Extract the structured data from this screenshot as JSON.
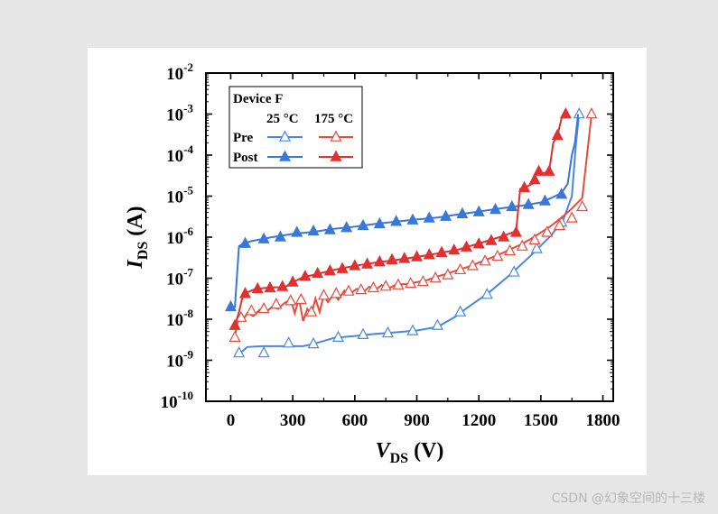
{
  "chart_data": {
    "type": "line",
    "title": "",
    "xlabel": {
      "main": "V",
      "sub": "DS",
      "unit": " (V)"
    },
    "ylabel": {
      "main": "I",
      "sub": "DS",
      "unit": " (A)"
    },
    "xlim": [
      -120,
      1850
    ],
    "ylim_log10": [
      -10,
      -2
    ],
    "y_scale": "log",
    "x_ticks": [
      0,
      300,
      600,
      900,
      1200,
      1500,
      1800
    ],
    "x_tick_labels": [
      "0",
      "300",
      "600",
      "900",
      "1200",
      "1500",
      "1800"
    ],
    "y_ticks_exponents": [
      -10,
      -9,
      -8,
      -7,
      -6,
      -5,
      -4,
      -3,
      -2
    ],
    "y_tick_labels": [
      {
        "base": "10",
        "exp": "-10"
      },
      {
        "base": "10",
        "exp": "-9"
      },
      {
        "base": "10",
        "exp": "-8"
      },
      {
        "base": "10",
        "exp": "-7"
      },
      {
        "base": "10",
        "exp": "-6"
      },
      {
        "base": "10",
        "exp": "-5"
      },
      {
        "base": "10",
        "exp": "-4"
      },
      {
        "base": "10",
        "exp": "-3"
      },
      {
        "base": "10",
        "exp": "-2"
      }
    ],
    "legend": {
      "title": "Device F",
      "col_headers": [
        "25 °C",
        "175 °C"
      ],
      "row_labels": [
        "Pre",
        "Post"
      ],
      "placement": "top-left"
    },
    "series": [
      {
        "name": "Pre 25 °C",
        "color": "#4a86e0",
        "marker": "triangle-open",
        "points": [
          [
            40,
            1.4e-09
          ],
          [
            80,
            2.1e-09
          ],
          [
            150,
            2.2e-09
          ],
          [
            200,
            2.2e-09
          ],
          [
            280,
            2.2e-09
          ],
          [
            350,
            2.2e-09
          ],
          [
            400,
            2.5e-09
          ],
          [
            500,
            3.5e-09
          ],
          [
            600,
            3.9e-09
          ],
          [
            700,
            4.4e-09
          ],
          [
            800,
            4.8e-09
          ],
          [
            900,
            5.3e-09
          ],
          [
            1000,
            6.5e-09
          ],
          [
            1080,
            1.1e-08
          ],
          [
            1150,
            2e-08
          ],
          [
            1250,
            4.5e-08
          ],
          [
            1350,
            1.2e-07
          ],
          [
            1450,
            3.5e-07
          ],
          [
            1550,
            1.1e-06
          ],
          [
            1610,
            2.8e-06
          ],
          [
            1650,
            1e-05
          ],
          [
            1670,
            0.0002
          ],
          [
            1685,
            0.001
          ]
        ],
        "markers": [
          [
            40,
            1.5e-09
          ],
          [
            160,
            1.5e-09
          ],
          [
            280,
            2.6e-09
          ],
          [
            400,
            2.5e-09
          ],
          [
            520,
            3.6e-09
          ],
          [
            640,
            4.2e-09
          ],
          [
            760,
            4.6e-09
          ],
          [
            880,
            5.2e-09
          ],
          [
            1000,
            7e-09
          ],
          [
            1110,
            1.5e-08
          ],
          [
            1240,
            4e-08
          ],
          [
            1370,
            1.4e-07
          ],
          [
            1480,
            5.2e-07
          ],
          [
            1600,
            2.3e-06
          ],
          [
            1685,
            0.001
          ]
        ]
      },
      {
        "name": "Post 25 °C",
        "color": "#3a78d8",
        "marker": "triangle-filled",
        "points": [
          [
            0,
            2e-08
          ],
          [
            20,
            2e-08
          ],
          [
            40,
            6e-07
          ],
          [
            60,
            7e-07
          ],
          [
            100,
            8e-07
          ],
          [
            200,
            1e-06
          ],
          [
            300,
            1.2e-06
          ],
          [
            400,
            1.35e-06
          ],
          [
            500,
            1.6e-06
          ],
          [
            600,
            1.8e-06
          ],
          [
            700,
            2.1e-06
          ],
          [
            800,
            2.4e-06
          ],
          [
            900,
            2.7e-06
          ],
          [
            1000,
            3e-06
          ],
          [
            1100,
            3.6e-06
          ],
          [
            1200,
            4.2e-06
          ],
          [
            1300,
            5e-06
          ],
          [
            1400,
            5.8e-06
          ],
          [
            1500,
            7e-06
          ],
          [
            1550,
            9e-06
          ],
          [
            1600,
            1.2e-05
          ],
          [
            1630,
            2e-05
          ],
          [
            1650,
            0.0001
          ],
          [
            1665,
            0.0002
          ],
          [
            1680,
            0.001
          ]
        ],
        "markers": [
          [
            0,
            2e-08
          ],
          [
            70,
            7e-07
          ],
          [
            160,
            9e-07
          ],
          [
            240,
            1e-06
          ],
          [
            320,
            1.3e-06
          ],
          [
            400,
            1.4e-06
          ],
          [
            480,
            1.5e-06
          ],
          [
            560,
            1.7e-06
          ],
          [
            640,
            1.9e-06
          ],
          [
            720,
            2.1e-06
          ],
          [
            800,
            2.4e-06
          ],
          [
            880,
            2.6e-06
          ],
          [
            960,
            2.9e-06
          ],
          [
            1040,
            3.2e-06
          ],
          [
            1120,
            3.7e-06
          ],
          [
            1200,
            4.1e-06
          ],
          [
            1280,
            4.7e-06
          ],
          [
            1360,
            5.5e-06
          ],
          [
            1440,
            6.2e-06
          ],
          [
            1520,
            7.6e-06
          ],
          [
            1600,
            1.1e-05
          ]
        ]
      },
      {
        "name": "Pre 175 °C",
        "color": "#e84a3c",
        "marker": "triangle-open",
        "points": [
          [
            20,
            4e-09
          ],
          [
            40,
            1.2e-08
          ],
          [
            60,
            1e-08
          ],
          [
            80,
            1.4e-08
          ],
          [
            110,
            1.2e-08
          ],
          [
            140,
            1.7e-08
          ],
          [
            170,
            1.5e-08
          ],
          [
            200,
            2e-08
          ],
          [
            230,
            1.8e-08
          ],
          [
            260,
            2.5e-08
          ],
          [
            290,
            3e-08
          ],
          [
            310,
            1.4e-08
          ],
          [
            330,
            3.2e-08
          ],
          [
            350,
            9e-09
          ],
          [
            370,
            1.8e-08
          ],
          [
            390,
            1.3e-08
          ],
          [
            410,
            3.2e-08
          ],
          [
            430,
            1.5e-08
          ],
          [
            450,
            3.8e-08
          ],
          [
            470,
            2.6e-08
          ],
          [
            500,
            4.2e-08
          ],
          [
            520,
            3e-08
          ],
          [
            550,
            5e-08
          ],
          [
            580,
            4.3e-08
          ],
          [
            610,
            5.5e-08
          ],
          [
            640,
            4.5e-08
          ],
          [
            670,
            6.2e-08
          ],
          [
            700,
            5.2e-08
          ],
          [
            730,
            6.8e-08
          ],
          [
            760,
            5.5e-08
          ],
          [
            800,
            7e-08
          ],
          [
            850,
            7.2e-08
          ],
          [
            900,
            8e-08
          ],
          [
            950,
            9e-08
          ],
          [
            1000,
            1.1e-07
          ],
          [
            1050,
            1.3e-07
          ],
          [
            1100,
            1.6e-07
          ],
          [
            1150,
            1.9e-07
          ],
          [
            1200,
            2.4e-07
          ],
          [
            1250,
            3e-07
          ],
          [
            1300,
            3.8e-07
          ],
          [
            1350,
            5e-07
          ],
          [
            1400,
            6.5e-07
          ],
          [
            1450,
            9e-07
          ],
          [
            1500,
            1.3e-06
          ],
          [
            1550,
            1.9e-06
          ],
          [
            1600,
            3e-06
          ],
          [
            1650,
            5e-06
          ],
          [
            1700,
            9e-06
          ],
          [
            1730,
            0.0002
          ],
          [
            1745,
            0.001
          ]
        ],
        "markers": [
          [
            20,
            3.6e-09
          ],
          [
            50,
            1.1e-08
          ],
          [
            100,
            1.6e-08
          ],
          [
            160,
            1.8e-08
          ],
          [
            220,
            2.3e-08
          ],
          [
            290,
            2.8e-08
          ],
          [
            340,
            3e-08
          ],
          [
            390,
            1.5e-08
          ],
          [
            450,
            3.8e-08
          ],
          [
            510,
            4.2e-08
          ],
          [
            570,
            4.8e-08
          ],
          [
            630,
            5.2e-08
          ],
          [
            690,
            5.8e-08
          ],
          [
            750,
            6.3e-08
          ],
          [
            810,
            6.8e-08
          ],
          [
            870,
            7.4e-08
          ],
          [
            930,
            8.2e-08
          ],
          [
            990,
            1e-07
          ],
          [
            1050,
            1.2e-07
          ],
          [
            1110,
            1.6e-07
          ],
          [
            1170,
            2e-07
          ],
          [
            1230,
            2.6e-07
          ],
          [
            1290,
            3.4e-07
          ],
          [
            1350,
            4.6e-07
          ],
          [
            1410,
            6e-07
          ],
          [
            1470,
            8.5e-07
          ],
          [
            1530,
            1.3e-06
          ],
          [
            1590,
            1.9e-06
          ],
          [
            1650,
            2.9e-06
          ],
          [
            1700,
            5.5e-06
          ],
          [
            1745,
            0.001
          ]
        ]
      },
      {
        "name": "Post 175 °C",
        "color": "#e03030",
        "marker": "triangle-filled",
        "points": [
          [
            20,
            7e-09
          ],
          [
            40,
            1.5e-08
          ],
          [
            60,
            4e-08
          ],
          [
            80,
            4.5e-08
          ],
          [
            120,
            5.5e-08
          ],
          [
            200,
            6e-08
          ],
          [
            260,
            6e-08
          ],
          [
            300,
            8e-08
          ],
          [
            350,
            1.05e-07
          ],
          [
            400,
            1.2e-07
          ],
          [
            500,
            1.6e-07
          ],
          [
            600,
            2e-07
          ],
          [
            700,
            2.4e-07
          ],
          [
            800,
            2.8e-07
          ],
          [
            900,
            3.3e-07
          ],
          [
            1000,
            4e-07
          ],
          [
            1100,
            5e-07
          ],
          [
            1200,
            7e-07
          ],
          [
            1300,
            1e-06
          ],
          [
            1380,
            1.4e-06
          ],
          [
            1400,
            1.5e-05
          ],
          [
            1430,
            1.7e-05
          ],
          [
            1460,
            2e-05
          ],
          [
            1480,
            4e-05
          ],
          [
            1500,
            3.5e-05
          ],
          [
            1540,
            4e-05
          ],
          [
            1560,
            0.0002
          ],
          [
            1580,
            0.0003
          ],
          [
            1600,
            0.0008
          ],
          [
            1620,
            0.001
          ]
        ],
        "markers": [
          [
            20,
            7e-09
          ],
          [
            70,
            4.2e-08
          ],
          [
            130,
            5.5e-08
          ],
          [
            190,
            5.8e-08
          ],
          [
            250,
            6.2e-08
          ],
          [
            300,
            8e-08
          ],
          [
            360,
            1.1e-07
          ],
          [
            420,
            1.3e-07
          ],
          [
            480,
            1.5e-07
          ],
          [
            540,
            1.7e-07
          ],
          [
            600,
            2e-07
          ],
          [
            660,
            2.2e-07
          ],
          [
            720,
            2.5e-07
          ],
          [
            780,
            2.8e-07
          ],
          [
            840,
            3e-07
          ],
          [
            900,
            3.3e-07
          ],
          [
            960,
            3.7e-07
          ],
          [
            1020,
            4.2e-07
          ],
          [
            1080,
            4.8e-07
          ],
          [
            1140,
            5.7e-07
          ],
          [
            1200,
            6.8e-07
          ],
          [
            1260,
            8.2e-07
          ],
          [
            1320,
            1e-06
          ],
          [
            1380,
            1.3e-06
          ],
          [
            1420,
            1.6e-05
          ],
          [
            1470,
            2.5e-05
          ],
          [
            1490,
            4e-05
          ],
          [
            1540,
            4e-05
          ],
          [
            1580,
            0.0003
          ],
          [
            1620,
            0.001
          ]
        ]
      }
    ]
  },
  "watermark": "CSDN @幻象空间的十三楼"
}
